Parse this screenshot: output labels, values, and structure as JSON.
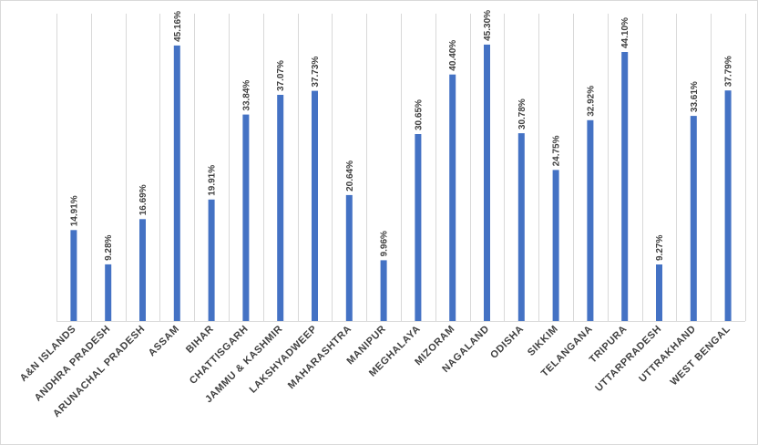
{
  "chart_data": {
    "type": "bar",
    "categories": [
      "A&N ISLANDS",
      "ANDHRA PRADESH",
      "ARUNACHAL PRADESH",
      "ASSAM",
      "BIHAR",
      "CHATTISGARH",
      "JAMMU & KASHMIR",
      "LAKSHYADWEEP",
      "MAHARASHTRA",
      "MANIPUR",
      "MEGHALAYA",
      "MIZORAM",
      "NAGALAND",
      "ODISHA",
      "SIKKIM",
      "TELANGANA",
      "TRIPURA",
      "UTTARPRADESH",
      "UTTRAKHAND",
      "WEST BENGAL"
    ],
    "values": [
      14.91,
      9.28,
      16.69,
      45.16,
      19.91,
      33.84,
      37.07,
      37.73,
      20.64,
      9.96,
      30.65,
      40.4,
      45.3,
      30.78,
      24.75,
      32.92,
      44.1,
      9.27,
      33.61,
      37.79
    ],
    "data_labels": [
      "14.91%",
      "9.28%",
      "16.69%",
      "45.16%",
      "19.91%",
      "33.84%",
      "37.07%",
      "37.73%",
      "20.64%",
      "9.96%",
      "30.65%",
      "40.40%",
      "45.30%",
      "30.78%",
      "24.75%",
      "32.92%",
      "44.10%",
      "9.27%",
      "33.61%",
      "37.79%"
    ],
    "unit": "%",
    "title": "",
    "xlabel": "",
    "ylabel": "",
    "ylim": [
      0,
      50
    ],
    "grid": "vertical",
    "legend": "none",
    "bar_color": "#4472c4"
  }
}
